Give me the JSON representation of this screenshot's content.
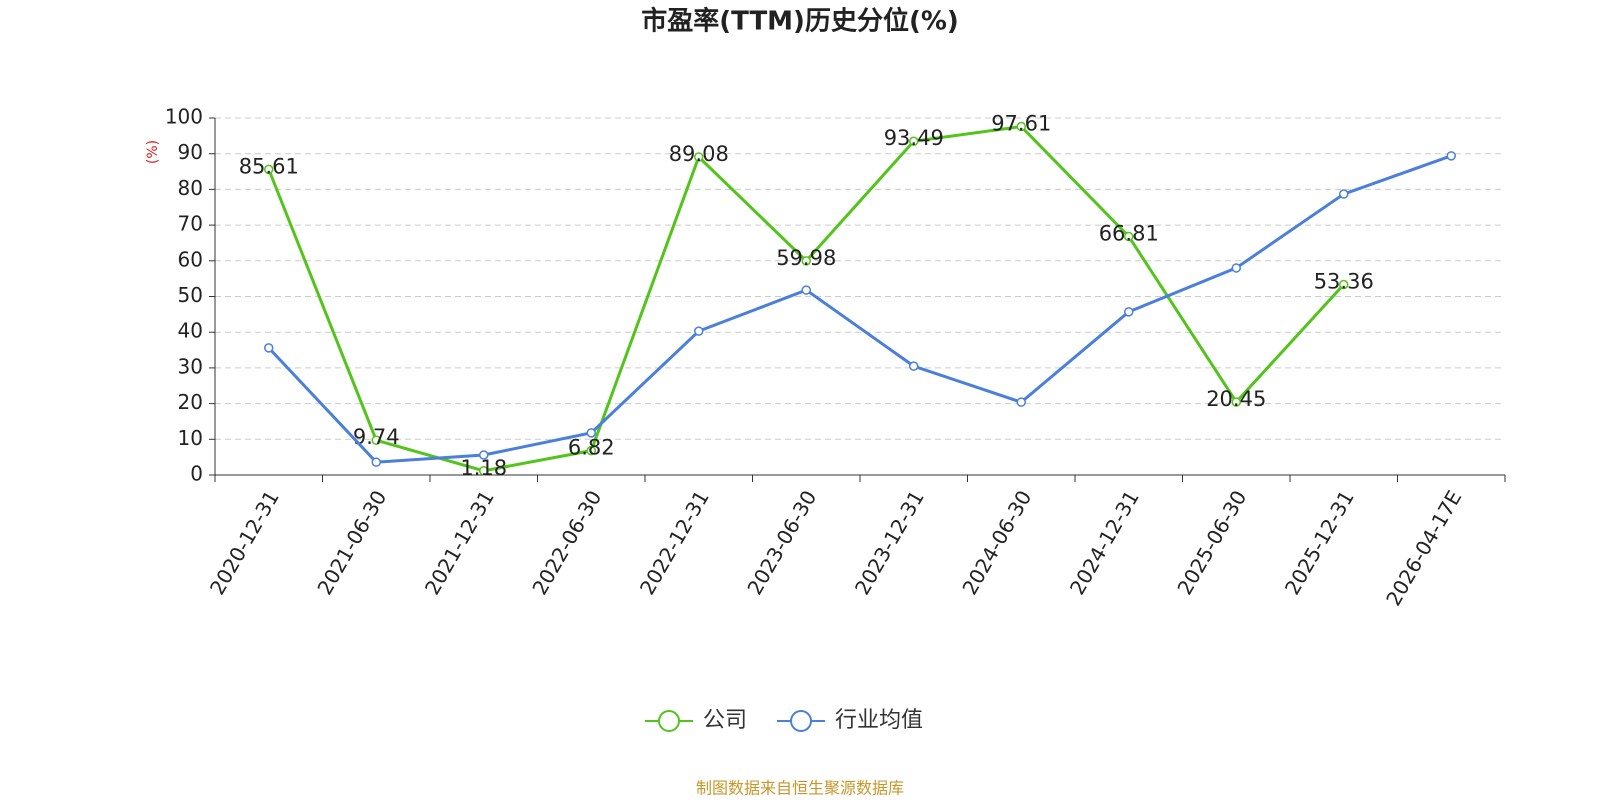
{
  "chart_data": {
    "type": "line",
    "title": "市盈率(TTM)历史分位(%)",
    "ylabel": "(%)",
    "categories": [
      "2020-12-31",
      "2021-06-30",
      "2021-12-31",
      "2022-06-30",
      "2022-12-31",
      "2023-06-30",
      "2023-12-31",
      "2024-06-30",
      "2024-12-31",
      "2025-06-30",
      "2025-12-31",
      "2026-04-17E"
    ],
    "series": [
      {
        "name": "公司",
        "color": "#52c41a",
        "values": [
          85.61,
          9.74,
          1.18,
          6.82,
          89.08,
          59.98,
          93.49,
          97.61,
          66.81,
          20.45,
          53.36,
          null
        ],
        "show_labels": true
      },
      {
        "name": "行业均值",
        "color": "#4a7fdc",
        "values": [
          35.6,
          3.6,
          5.6,
          11.8,
          40.3,
          51.8,
          30.5,
          20.4,
          45.7,
          58.0,
          78.7,
          89.4
        ],
        "show_labels": false
      }
    ],
    "ylim": [
      0,
      100
    ],
    "yticks": [
      0,
      10,
      20,
      30,
      40,
      50,
      60,
      70,
      80,
      90,
      100
    ],
    "grid": true,
    "legend": "bottom",
    "source": "制图数据来自恒生聚源数据库"
  }
}
